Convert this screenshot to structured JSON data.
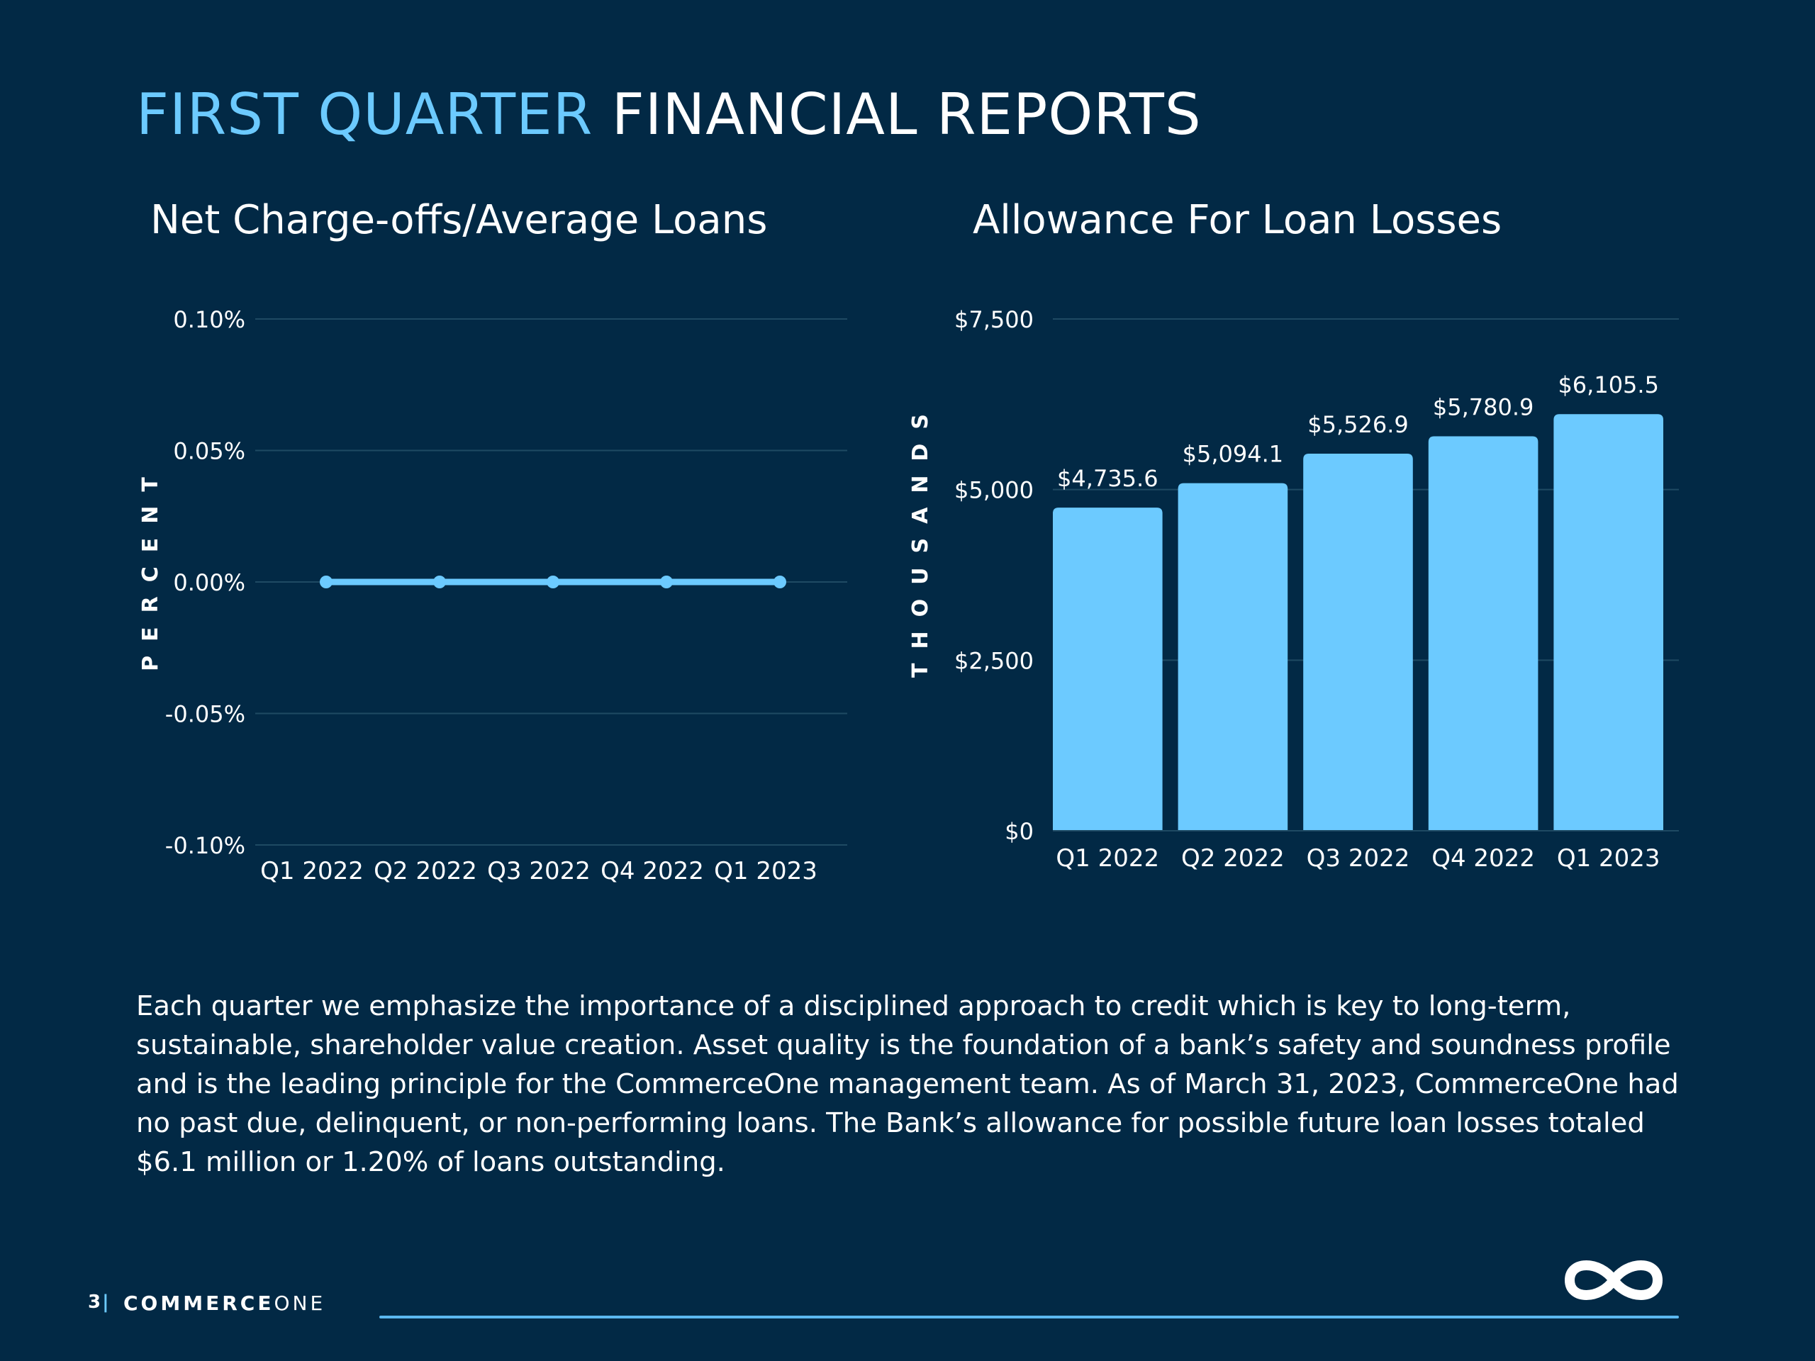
{
  "header": {
    "title_accent": "FIRST QUARTER",
    "title_rest": "FINANCIAL REPORTS"
  },
  "colors": {
    "background": "#022945",
    "accent": "#6ccaff",
    "grid": "#1f4a63",
    "text": "#ffffff"
  },
  "chart_data": [
    {
      "type": "line",
      "title": "Net Charge-offs/Average Loans",
      "ylabel": "PERCENT",
      "xlabel": "",
      "categories": [
        "Q1 2022",
        "Q2 2022",
        "Q3 2022",
        "Q4 2022",
        "Q1 2023"
      ],
      "values": [
        0.0,
        0.0,
        0.0,
        0.0,
        0.0
      ],
      "ylim": [
        -0.1,
        0.1
      ],
      "yticks": [
        0.1,
        0.05,
        0.0,
        -0.05,
        -0.1
      ],
      "ytick_labels": [
        "0.10%",
        "0.05%",
        "0.00%",
        "-0.05%",
        "-0.10%"
      ],
      "grid": true
    },
    {
      "type": "bar",
      "title": "Allowance For Loan Losses",
      "ylabel": "THOUSANDS",
      "xlabel": "",
      "categories": [
        "Q1 2022",
        "Q2 2022",
        "Q3 2022",
        "Q4 2022",
        "Q1 2023"
      ],
      "values": [
        4735.6,
        5094.1,
        5526.9,
        5780.9,
        6105.5
      ],
      "data_labels": [
        "$4,735.6",
        "$5,094.1",
        "$5,526.9",
        "$5,780.9",
        "$6,105.5"
      ],
      "ylim": [
        0,
        7500
      ],
      "yticks": [
        7500,
        5000,
        2500,
        0
      ],
      "ytick_labels": [
        "$7,500",
        "$5,000",
        "$2,500",
        "$0"
      ],
      "grid": true
    }
  ],
  "body": {
    "paragraph": "Each quarter we emphasize the importance of a disciplined approach to credit which is key to long-term, sustainable, shareholder value creation. Asset quality is the foundation of a bank’s safety and soundness profile and is the leading principle for the CommerceOne management team. As of March 31, 2023, CommerceOne had no past due, delinquent, or non-performing loans. The Bank’s allowance for possible future loan losses totaled $6.1 million or 1.20% of loans outstanding."
  },
  "footer": {
    "page_number": "3",
    "separator": "|",
    "brand_bold": "COMMERCE",
    "brand_light": "ONE",
    "logo": "infinity-icon"
  }
}
